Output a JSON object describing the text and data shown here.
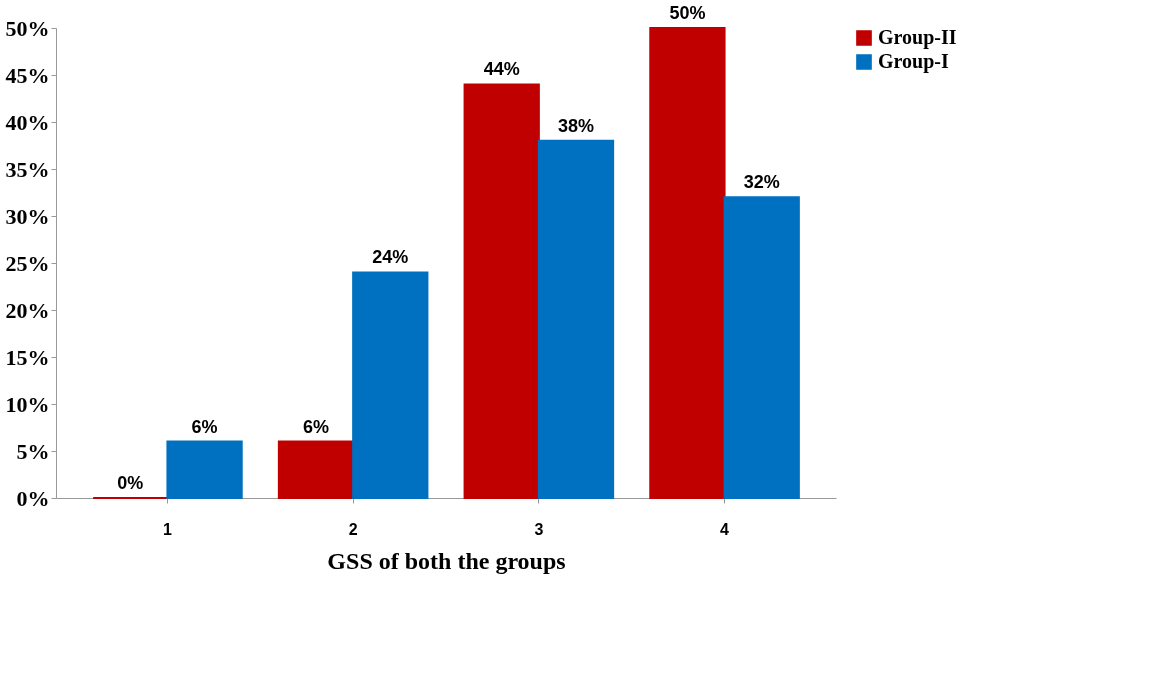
{
  "chart_data": {
    "type": "bar",
    "xlabel": "GSS of both the groups",
    "categories": [
      "1",
      "2",
      "3",
      "4"
    ],
    "series": [
      {
        "name": "Group-II",
        "color": "#c00000",
        "values": [
          0,
          6,
          44,
          50
        ],
        "value_labels": [
          "0%",
          "6%",
          "44%",
          "50%"
        ]
      },
      {
        "name": "Group-I",
        "color": "#0070c0",
        "values": [
          6,
          24,
          38,
          32
        ],
        "value_labels": [
          "6%",
          "24%",
          "38%",
          "32%"
        ]
      }
    ],
    "ylim": [
      0,
      50
    ],
    "yticks": [
      {
        "value": 0,
        "label": "0%"
      },
      {
        "value": 5,
        "label": "5%"
      },
      {
        "value": 10,
        "label": "10%"
      },
      {
        "value": 15,
        "label": "15%"
      },
      {
        "value": 20,
        "label": "20%"
      },
      {
        "value": 25,
        "label": "25%"
      },
      {
        "value": 30,
        "label": "30%"
      },
      {
        "value": 35,
        "label": "35%"
      },
      {
        "value": 40,
        "label": "40%"
      },
      {
        "value": 45,
        "label": "45%"
      },
      {
        "value": 50,
        "label": "50%"
      }
    ],
    "legend": "right",
    "grid": false
  }
}
